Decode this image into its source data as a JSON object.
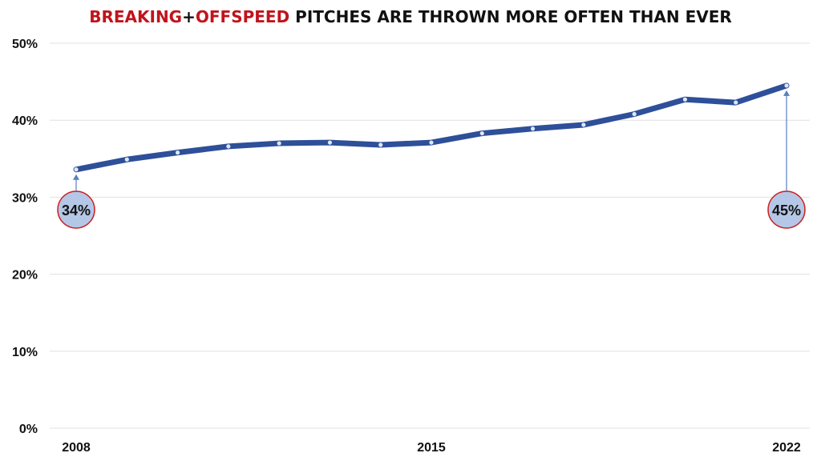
{
  "chart_data": {
    "type": "line",
    "title_parts": [
      {
        "text": "BREAKING",
        "color": "#c0141c"
      },
      {
        "text": "+",
        "color": "#111111"
      },
      {
        "text": "OFFSPEED",
        "color": "#c0141c"
      },
      {
        "text": " PITCHES ARE THROWN MORE OFTEN THAN EVER",
        "color": "#111111"
      }
    ],
    "x": [
      2008,
      2009,
      2010,
      2011,
      2012,
      2013,
      2014,
      2015,
      2016,
      2017,
      2018,
      2019,
      2020,
      2021,
      2022
    ],
    "x_tick_labels": [
      "2008",
      "2015",
      "2022"
    ],
    "series": [
      {
        "values": [
          33.6,
          34.9,
          35.8,
          36.6,
          37.0,
          37.1,
          36.8,
          37.1,
          38.3,
          38.9,
          39.4,
          40.8,
          42.7,
          42.3,
          44.5
        ],
        "color": "#2e4f99"
      }
    ],
    "ylim": [
      0,
      50
    ],
    "y_ticks": [
      0,
      10,
      20,
      30,
      40,
      50
    ],
    "y_tick_labels": [
      "0%",
      "10%",
      "20%",
      "30%",
      "40%",
      "50%"
    ],
    "grid": true,
    "annotations": [
      {
        "label": "34%",
        "x": 2008
      },
      {
        "label": "45%",
        "x": 2022
      }
    ],
    "colors": {
      "callout_fill": "#b4c7e7",
      "callout_border": "#cc2222",
      "grid": "#e0e0e0",
      "arrow": "#5a7fc0"
    }
  }
}
